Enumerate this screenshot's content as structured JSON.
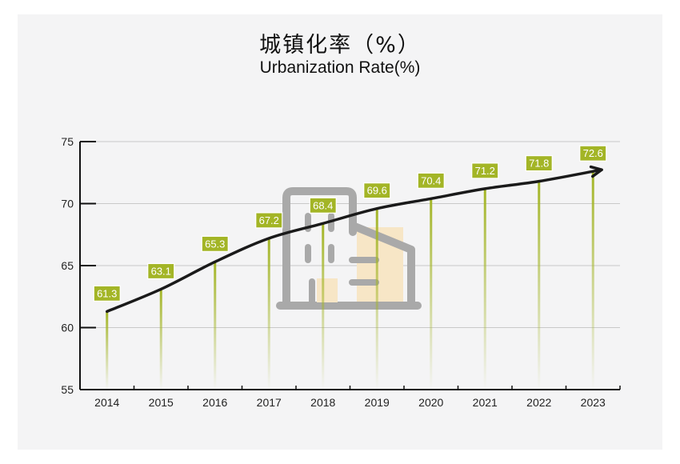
{
  "title_cn": "城镇化率（%）",
  "title_en": "Urbanization Rate(%)",
  "colors": {
    "panel": "#f4f4f5",
    "accent": "#a3b526",
    "accent_edge": "#8a9a1b",
    "line": "#1a1a1a",
    "grid": "#c9c9c9",
    "icon_gray": "#a9a9a9",
    "icon_fill": "#f7e6c6"
  },
  "icon": "building-icon",
  "chart_data": {
    "type": "line",
    "title": "城镇化率（%）",
    "subtitle": "Urbanization Rate(%)",
    "categories": [
      "2014",
      "2015",
      "2016",
      "2017",
      "2018",
      "2019",
      "2020",
      "2021",
      "2022",
      "2023"
    ],
    "values": [
      61.3,
      63.1,
      65.3,
      67.2,
      68.4,
      69.6,
      70.4,
      71.2,
      71.8,
      72.6
    ],
    "y_ticks": [
      55,
      60,
      65,
      70,
      75
    ],
    "ylim": [
      55,
      75
    ],
    "grid": true,
    "data_labels": true
  }
}
